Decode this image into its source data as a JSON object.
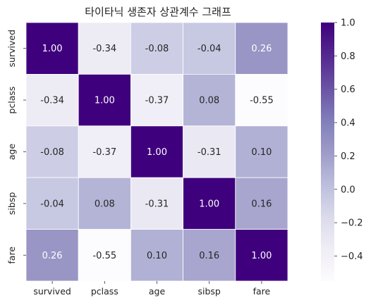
{
  "chart_data": {
    "type": "heatmap",
    "title": "타이타닉 생존자 상관계수 그래프",
    "rows": [
      "survived",
      "pclass",
      "age",
      "sibsp",
      "fare"
    ],
    "columns": [
      "survived",
      "pclass",
      "age",
      "sibsp",
      "fare"
    ],
    "values": [
      [
        1.0,
        -0.34,
        -0.08,
        -0.04,
        0.26
      ],
      [
        -0.34,
        1.0,
        -0.37,
        0.08,
        -0.55
      ],
      [
        -0.08,
        -0.37,
        1.0,
        -0.31,
        0.1
      ],
      [
        -0.04,
        0.08,
        -0.31,
        1.0,
        0.16
      ],
      [
        0.26,
        -0.55,
        0.1,
        0.16,
        1.0
      ]
    ],
    "colormap": "Purples",
    "color_range": [
      -0.55,
      1.0
    ],
    "colorbar_ticks": [
      "1.0",
      "0.8",
      "0.6",
      "0.4",
      "0.2",
      "0.0",
      "−0.2",
      "−0.4"
    ],
    "colorbar_tick_values": [
      1.0,
      0.8,
      0.6,
      0.4,
      0.2,
      0.0,
      -0.2,
      -0.4
    ],
    "annotations": true,
    "value_format": "0.00",
    "grid": false,
    "legend": "colorbar right"
  }
}
